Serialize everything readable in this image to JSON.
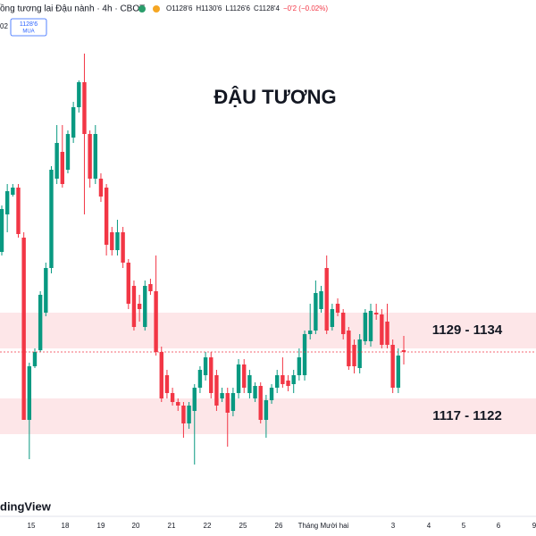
{
  "chart_data": {
    "type": "candlestick",
    "title": "ĐẬU TƯƠNG",
    "symbol": "ồng tương lai Đậu nành · 4h · CBOT",
    "legend_items": [
      "O1128'6",
      "H1130'6",
      "L1126'6",
      "C1128'4",
      "−0'2 (−0.02%)"
    ],
    "side_text": "02",
    "badge": {
      "price": "1128'6",
      "action": "MUA"
    },
    "watermark": "dingView",
    "up_color": "#089981",
    "down_color": "#f23645",
    "ylim": [
      1105.5,
      1175.25
    ],
    "zones": [
      {
        "label": "1129 - 1134",
        "low": 1129,
        "high": 1134
      },
      {
        "label": "1117 - 1122",
        "low": 1117,
        "high": 1122
      }
    ],
    "xtick_labels": [
      "15",
      "18",
      "19",
      "20",
      "21",
      "22",
      "25",
      "26",
      "Tháng Mười hai",
      "3",
      "4",
      "5",
      "6",
      "9"
    ],
    "open": [
      1142.5,
      1147.75,
      1150.5,
      1151.5,
      1144.5,
      1119,
      1126.5,
      1128.75,
      1134,
      1140.25,
      1152.75,
      1156.5,
      1154,
      1158.5,
      1162.75,
      1166.25,
      1159,
      1152.75,
      1152.75,
      1151.5,
      1145.25,
      1142.75,
      1145.25,
      1141,
      1137.75,
      1135.25,
      1132,
      1138,
      1137,
      1128.5,
      1125.25,
      1122.75,
      1121.5,
      1121,
      1118.5,
      1120.25,
      1123.5,
      1125.25,
      1127.75,
      1125.25,
      1122,
      1122.75,
      1120.25,
      1122.75,
      1126.75,
      1122.75,
      1122,
      1123.75,
      1119,
      1121.75,
      1123.5,
      1125.25,
      1124.5,
      1124,
      1125.25,
      1125.25,
      1131,
      1131.5,
      1134.5,
      1140.25,
      1132,
      1135.25,
      1134,
      1131.5,
      1129.5,
      1126.25,
      1130,
      1130,
      1134,
      1133.75,
      1132.75,
      1129.5,
      1123.5,
      1128.75
    ],
    "high": [
      1149,
      1152,
      1152,
      1152,
      1145.25,
      1127,
      1129,
      1137,
      1141,
      1154.5,
      1160.25,
      1160.25,
      1159.5,
      1163.5,
      1166.5,
      1170.25,
      1159.5,
      1160.25,
      1153.5,
      1152,
      1146,
      1147,
      1146,
      1141.5,
      1138.5,
      1136.5,
      1138.5,
      1138.75,
      1142,
      1129.25,
      1126,
      1123.5,
      1122,
      1121.5,
      1121.5,
      1124,
      1126.5,
      1128.5,
      1128.5,
      1126,
      1123.5,
      1123.5,
      1123.5,
      1127.5,
      1127.5,
      1126,
      1124.25,
      1124.25,
      1122.5,
      1124,
      1126,
      1127.75,
      1125.25,
      1126,
      1129,
      1131.5,
      1135.25,
      1138.5,
      1137.75,
      1142,
      1135.25,
      1136,
      1134.5,
      1132,
      1130.25,
      1131,
      1134.5,
      1135.25,
      1135.25,
      1134.5,
      1135.25,
      1130.25,
      1129,
      1130.75
    ],
    "low": [
      1142,
      1145.25,
      1150.25,
      1144.5,
      1119,
      1113.5,
      1126.25,
      1128.5,
      1133.5,
      1139.5,
      1152,
      1151.5,
      1153.5,
      1157.75,
      1162,
      1147.75,
      1151.5,
      1152,
      1149.5,
      1142,
      1142,
      1142,
      1140.25,
      1134.5,
      1131.5,
      1132.75,
      1131.5,
      1136.5,
      1128,
      1121.5,
      1122,
      1121,
      1120.25,
      1116.5,
      1117.75,
      1112.75,
      1122.75,
      1124.5,
      1122,
      1120.25,
      1121.5,
      1115.25,
      1119.5,
      1122,
      1122.75,
      1122,
      1121.5,
      1118.5,
      1116.5,
      1121.25,
      1122.75,
      1123.5,
      1123,
      1122.75,
      1124.5,
      1124.5,
      1130.25,
      1131,
      1134,
      1131,
      1131.5,
      1133.5,
      1130.25,
      1126,
      1125.5,
      1125.5,
      1129.5,
      1129.25,
      1133,
      1129,
      1129,
      1122.75,
      1122.75,
      1126.75
    ],
    "close": [
      1148.5,
      1151,
      1151.5,
      1145,
      1119,
      1126.5,
      1128.5,
      1136.5,
      1140.25,
      1154,
      1157.75,
      1152,
      1159,
      1162.75,
      1166.25,
      1159,
      1152.75,
      1159,
      1150.25,
      1143.5,
      1142.75,
      1145.25,
      1141,
      1135.25,
      1132,
      1134.5,
      1137.75,
      1137,
      1128.5,
      1122,
      1122.75,
      1121.5,
      1121,
      1118.5,
      1121,
      1123.5,
      1126,
      1127.75,
      1122.75,
      1121,
      1122.75,
      1120,
      1122.75,
      1126.75,
      1123.5,
      1125.25,
      1123.75,
      1119,
      1121.75,
      1123.5,
      1125.25,
      1124,
      1123.75,
      1125.25,
      1127.75,
      1131,
      1131.5,
      1136.75,
      1137,
      1131.5,
      1134.5,
      1134,
      1131,
      1126.5,
      1126.5,
      1130.25,
      1134,
      1134.25,
      1133.75,
      1129.5,
      1129.5,
      1123.5,
      1128,
      1128.5
    ]
  }
}
